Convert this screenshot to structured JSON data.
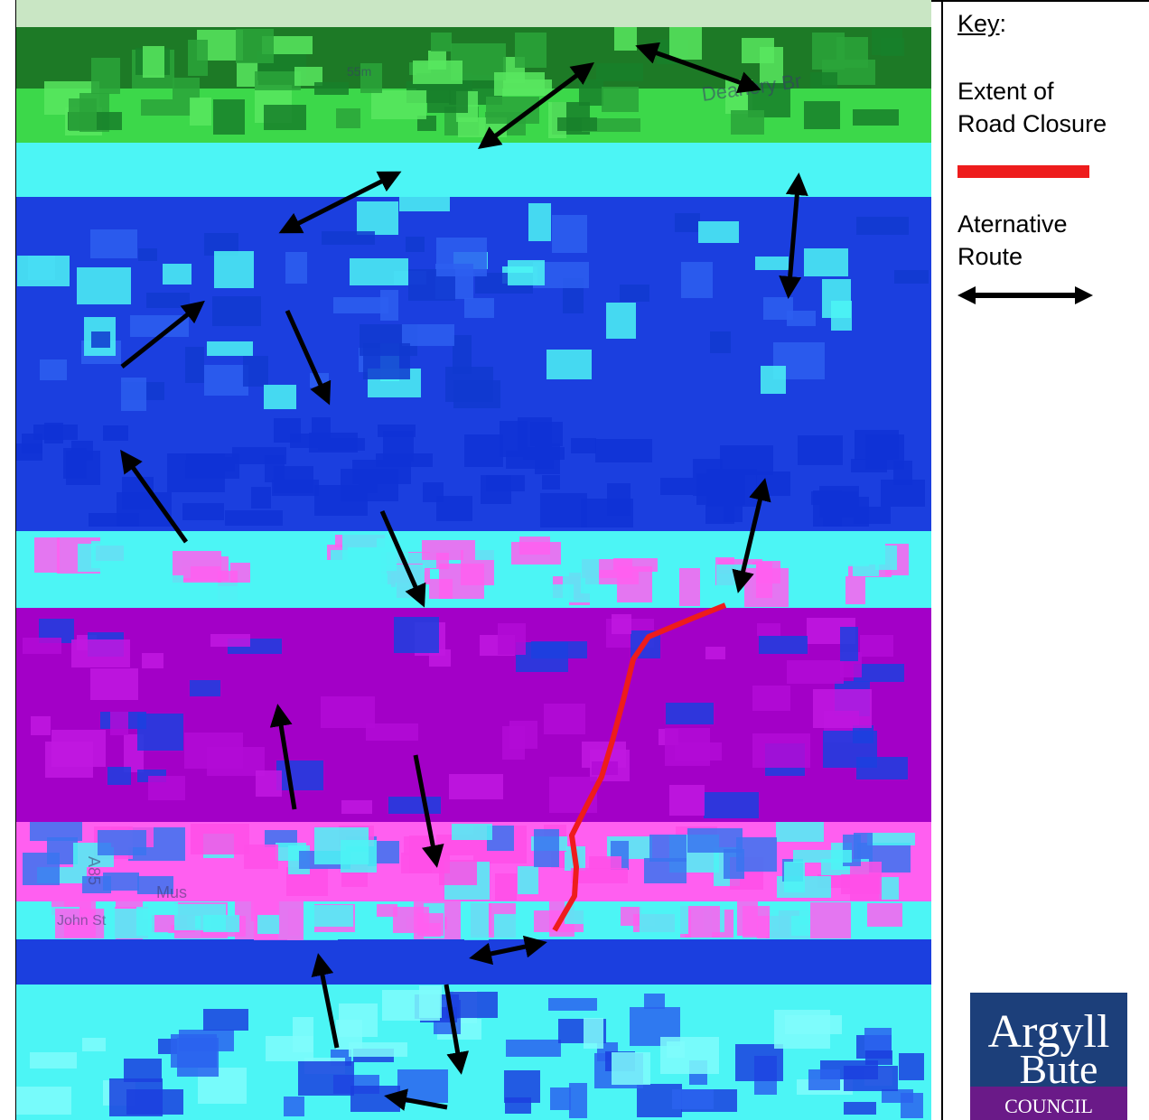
{
  "key": {
    "title": "Key",
    "title_suffix": ":",
    "closure_label_line1": "Extent of",
    "closure_label_line2": "Road Closure",
    "closure_color": "#ee1c1c",
    "route_label_line1": "Aternative",
    "route_label_line2": "Route",
    "route_color": "#000000"
  },
  "map": {
    "labels": {
      "deanery": "Deanery Br",
      "cont": "55m",
      "a85_road": "A85",
      "mus": "Mus",
      "john_st": "John St"
    },
    "colors": {
      "cyan": "#4cf5f5",
      "blue": "#1b3fdf",
      "magenta": "#ff5ff0",
      "purple": "#a300c7",
      "green": "#3cd84a",
      "darkgreen": "#1d7a26"
    }
  },
  "logo": {
    "line1": "Argyll",
    "line2": "Bute",
    "line3": "COUNCIL",
    "background": "#1c3f7a",
    "band_color": "#6a1a88"
  }
}
